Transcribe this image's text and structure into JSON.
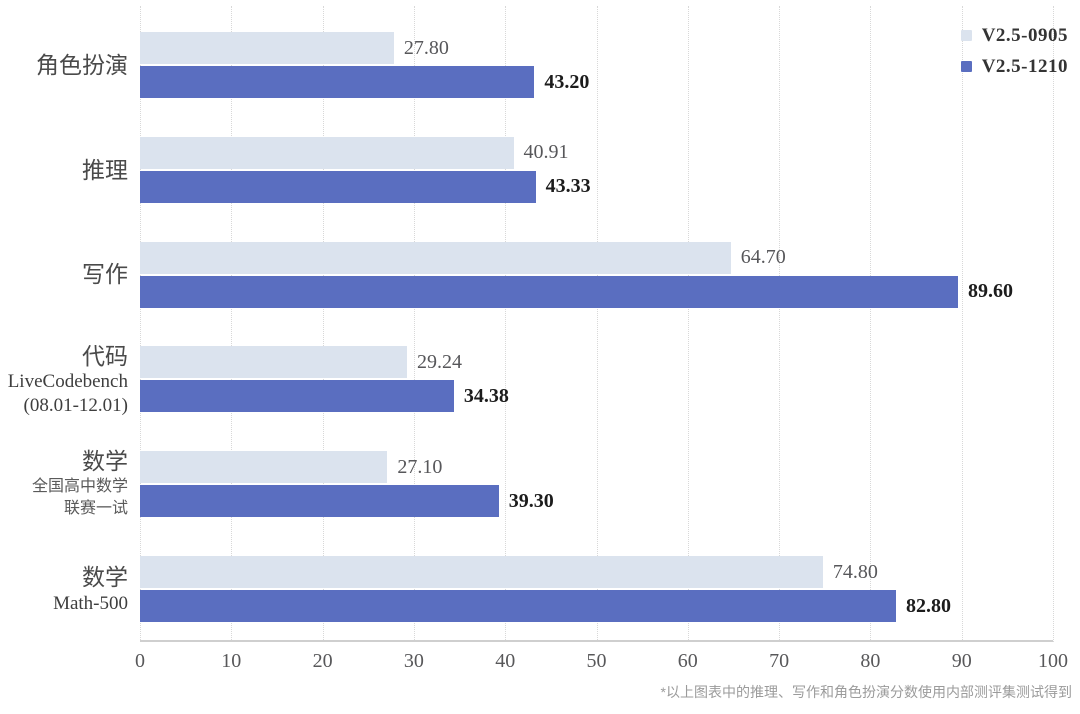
{
  "figure": {
    "background": "#ffffff"
  },
  "legend": {
    "position": "top-right",
    "items": [
      {
        "label": "V2.5-0905",
        "color": "#dbe3ee"
      },
      {
        "label": "V2.5-1210",
        "color": "#5a6ec0"
      }
    ]
  },
  "footnote": "*以上图表中的推理、写作和角色扮演分数使用内部测评集测试得到",
  "chart_data": {
    "type": "bar",
    "orientation": "horizontal",
    "title": "",
    "xlabel": "",
    "ylabel": "",
    "xlim": [
      0,
      100
    ],
    "x_ticks": [
      0,
      10,
      20,
      30,
      40,
      50,
      60,
      70,
      80,
      90,
      100
    ],
    "grid": "vertical-dotted",
    "legend_position": "top-right",
    "categories": [
      {
        "label": "角色扮演",
        "sublabels": []
      },
      {
        "label": "推理",
        "sublabels": []
      },
      {
        "label": "写作",
        "sublabels": []
      },
      {
        "label": "代码",
        "sublabels": [
          "LiveCodebench",
          "(08.01-12.01)"
        ]
      },
      {
        "label": "数学",
        "sublabels": [
          "全国高中数学",
          "联赛一试"
        ]
      },
      {
        "label": "数学",
        "sublabels": [
          "Math-500"
        ]
      }
    ],
    "series": [
      {
        "name": "V2.5-0905",
        "color": "#dbe3ee",
        "value_text_style": "regular",
        "values": [
          27.8,
          40.91,
          64.7,
          29.24,
          27.1,
          74.8
        ],
        "value_labels": [
          "27.80",
          "40.91",
          "64.70",
          "29.24",
          "27.10",
          "74.80"
        ]
      },
      {
        "name": "V2.5-1210",
        "color": "#5a6ec0",
        "value_text_style": "bold",
        "values": [
          43.2,
          43.33,
          89.6,
          34.38,
          39.3,
          82.8
        ],
        "value_labels": [
          "43.20",
          "43.33",
          "89.60",
          "34.38",
          "39.30",
          "82.80"
        ]
      }
    ]
  }
}
